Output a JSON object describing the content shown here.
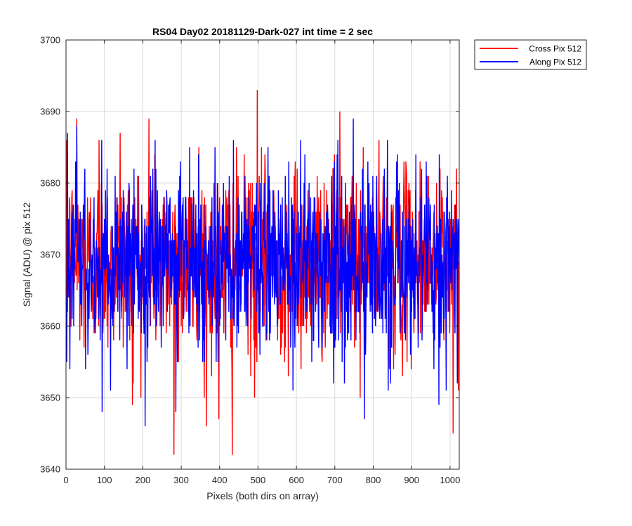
{
  "chart_data": {
    "type": "line",
    "title": "RS04 Day02 20181129-Dark-027 int time = 2 sec",
    "xlabel": "Pixels (both dirs on array)",
    "ylabel": "Signal (ADU) @ pix 512",
    "xlim": [
      0,
      1024
    ],
    "ylim": [
      3640,
      3700
    ],
    "xticks": [
      0,
      100,
      200,
      300,
      400,
      500,
      600,
      700,
      800,
      900,
      1000
    ],
    "yticks": [
      3640,
      3650,
      3660,
      3670,
      3680,
      3690,
      3700
    ],
    "grid": true,
    "legend_position": "outside-top-right",
    "colors": {
      "cross": "#ff0000",
      "along": "#0000ff",
      "grid": "#d9d9d9",
      "axis": "#262626"
    },
    "noise_model": {
      "mean": 3669,
      "sd": 6.5,
      "points_per_series": 1024
    },
    "series": [
      {
        "name": "Cross Pix 512",
        "color": "#ff0000",
        "peaks": [
          {
            "x": 27,
            "y": 3689
          },
          {
            "x": 215,
            "y": 3689
          },
          {
            "x": 497,
            "y": 3693
          },
          {
            "x": 712,
            "y": 3690
          },
          {
            "x": 280,
            "y": 3642
          },
          {
            "x": 432,
            "y": 3642
          },
          {
            "x": 365,
            "y": 3646
          },
          {
            "x": 397,
            "y": 3647
          },
          {
            "x": 1007,
            "y": 3645
          },
          {
            "x": 172,
            "y": 3649
          },
          {
            "x": 490,
            "y": 3650
          },
          {
            "x": 140,
            "y": 3687
          },
          {
            "x": 85,
            "y": 3686
          },
          {
            "x": 345,
            "y": 3685
          }
        ]
      },
      {
        "name": "Along Pix 512",
        "color": "#0000ff",
        "peaks": [
          {
            "x": 27,
            "y": 3688
          },
          {
            "x": 3,
            "y": 3687
          },
          {
            "x": 747,
            "y": 3689
          },
          {
            "x": 836,
            "y": 3686
          },
          {
            "x": 205,
            "y": 3646
          },
          {
            "x": 93,
            "y": 3648
          },
          {
            "x": 285,
            "y": 3648
          },
          {
            "x": 776,
            "y": 3647
          },
          {
            "x": 970,
            "y": 3649
          },
          {
            "x": 590,
            "y": 3651
          },
          {
            "x": 435,
            "y": 3686
          },
          {
            "x": 910,
            "y": 3684
          }
        ]
      }
    ]
  }
}
